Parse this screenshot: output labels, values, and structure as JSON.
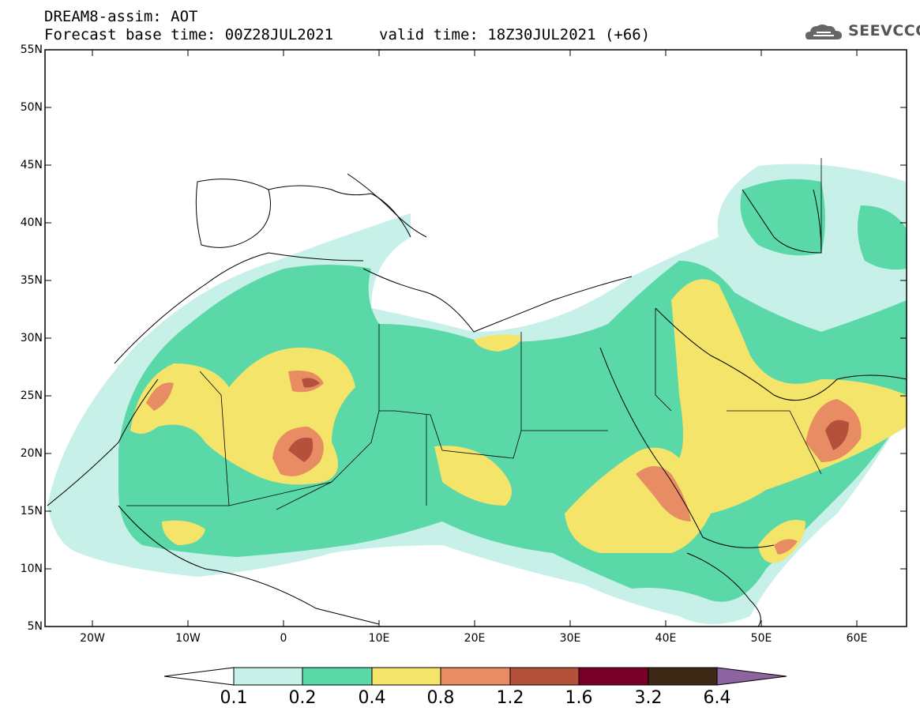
{
  "header": {
    "title": "DREAM8-assim: AOT",
    "base_time": "Forecast base time: 00Z28JUL2021",
    "valid_time": "valid time: 18Z30JUL2021 (+66)"
  },
  "logo": {
    "text": "SEEVCCC",
    "icon": "cloud-icon"
  },
  "map": {
    "lon_range": [
      -25,
      65
    ],
    "lat_range": [
      5,
      55
    ],
    "lat_labels": [
      "55N",
      "50N",
      "45N",
      "40N",
      "35N",
      "30N",
      "25N",
      "20N",
      "15N",
      "10N",
      "5N"
    ],
    "lon_labels": [
      "20W",
      "10W",
      "0",
      "10E",
      "20E",
      "30E",
      "40E",
      "50E",
      "60E"
    ]
  },
  "legend": {
    "levels": [
      "0.1",
      "0.2",
      "0.4",
      "0.8",
      "1.2",
      "1.6",
      "3.2",
      "6.4"
    ],
    "colors": [
      "#ffffff",
      "#c6f0e8",
      "#5ad8a8",
      "#f5e46a",
      "#e88c64",
      "#b4503c",
      "#780028",
      "#3c2814",
      "#8c64a0"
    ]
  },
  "colors": {
    "aot_01_02": "#c6f0e8",
    "aot_02_04": "#5ad8a8",
    "aot_04_08": "#f5e46a",
    "aot_08_12": "#e88c64",
    "aot_12_16": "#b4503c",
    "aot_16_32": "#780028"
  }
}
